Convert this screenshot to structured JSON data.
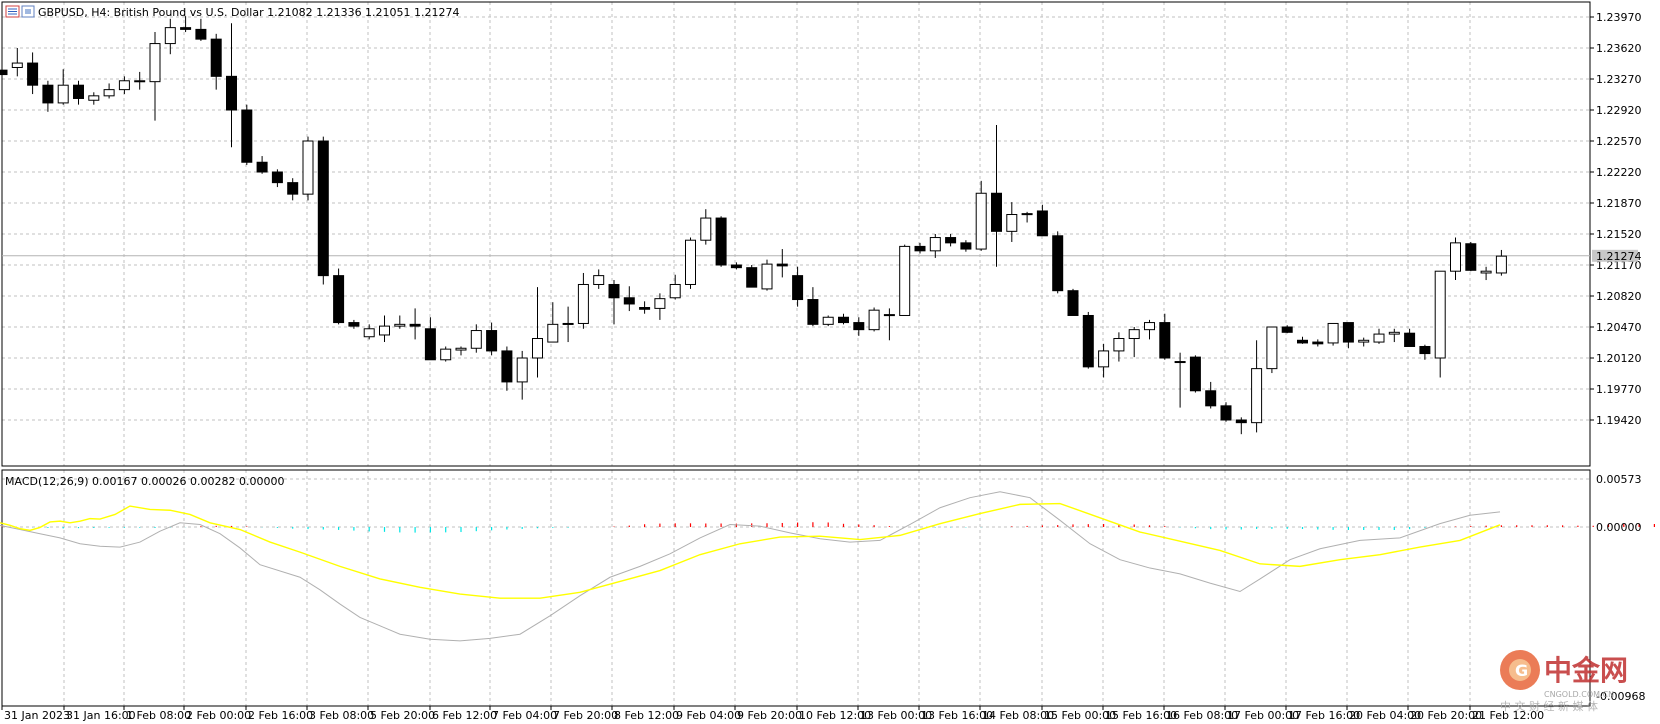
{
  "colors": {
    "grid": "#c0c0c0",
    "frame": "#000000",
    "bull_fill": "#ffffff",
    "bear_fill": "#000000",
    "macd_pos": "#ff0000",
    "macd_neg": "#00e5e5",
    "signal_line": "#ffff00",
    "macd_line": "#b0b0b0",
    "current_price_line": "#b4b4b4"
  },
  "header": {
    "symbol": "GBPUSD",
    "timeframe": "H4",
    "description": "British Pound vs U.S. Dollar",
    "ohlc": "1.21082 1.21336 1.21051 1.21274",
    "text": "GBPUSD, H4:  British Pound vs U.S. Dollar  1.21082 1.21336 1.21051 1.21274"
  },
  "chart_data": {
    "type": "candlestick",
    "symbol": "GBPUSD",
    "timeframe": "H4",
    "price_axis_labels": [
      "1.23970",
      "1.23620",
      "1.23270",
      "1.22920",
      "1.22570",
      "1.22220",
      "1.21870",
      "1.21520",
      "1.21170",
      "1.20820",
      "1.20470",
      "1.20120",
      "1.19770",
      "1.19420"
    ],
    "price_axis_values": [
      1.2397,
      1.2362,
      1.2327,
      1.2292,
      1.2257,
      1.2222,
      1.2187,
      1.2152,
      1.2117,
      1.2082,
      1.2047,
      1.2012,
      1.1977,
      1.1942
    ],
    "current_price": "1.21274",
    "time_axis_labels": [
      "31 Jan 2023",
      "31 Jan 16:00",
      "1 Feb 08:00",
      "2 Feb 00:00",
      "2 Feb 16:00",
      "3 Feb 08:00",
      "5 Feb 20:00",
      "6 Feb 12:00",
      "7 Feb 04:00",
      "7 Feb 20:00",
      "8 Feb 12:00",
      "9 Feb 04:00",
      "9 Feb 20:00",
      "10 Feb 12:00",
      "13 Feb 00:00",
      "13 Feb 16:00",
      "14 Feb 08:00",
      "15 Feb 00:00",
      "15 Feb 16:00",
      "16 Feb 08:00",
      "17 Feb 00:00",
      "17 Feb 16:00",
      "20 Feb 04:00",
      "20 Feb 20:00",
      "21 Feb 12:00"
    ],
    "candles": [
      [
        1.2337,
        1.2341,
        1.233,
        1.2332
      ],
      [
        1.234,
        1.2362,
        1.233,
        1.2345
      ],
      [
        1.2345,
        1.2357,
        1.231,
        1.232
      ],
      [
        1.232,
        1.2325,
        1.229,
        1.23
      ],
      [
        1.23,
        1.2338,
        1.2298,
        1.232
      ],
      [
        1.232,
        1.2325,
        1.2298,
        1.2305
      ],
      [
        1.2303,
        1.2312,
        1.2298,
        1.2308
      ],
      [
        1.2308,
        1.2322,
        1.2305,
        1.2315
      ],
      [
        1.2315,
        1.233,
        1.231,
        1.2325
      ],
      [
        1.2325,
        1.2335,
        1.2315,
        1.2324
      ],
      [
        1.2324,
        1.238,
        1.228,
        1.2367
      ],
      [
        1.2367,
        1.2395,
        1.2355,
        1.2385
      ],
      [
        1.2385,
        1.2398,
        1.238,
        1.2383
      ],
      [
        1.2383,
        1.2395,
        1.237,
        1.2372
      ],
      [
        1.2372,
        1.2378,
        1.2315,
        1.233
      ],
      [
        1.233,
        1.239,
        1.225,
        1.2292
      ],
      [
        1.2292,
        1.2298,
        1.223,
        1.2233
      ],
      [
        1.2233,
        1.224,
        1.222,
        1.2222
      ],
      [
        1.2222,
        1.2225,
        1.2205,
        1.221
      ],
      [
        1.221,
        1.2215,
        1.219,
        1.2197
      ],
      [
        1.2197,
        1.2262,
        1.219,
        1.2257
      ],
      [
        1.2257,
        1.2262,
        1.2095,
        1.2105
      ],
      [
        1.2105,
        1.2113,
        1.205,
        1.2052
      ],
      [
        1.2052,
        1.2055,
        1.2045,
        1.2048
      ],
      [
        1.2036,
        1.205,
        1.2033,
        1.2045
      ],
      [
        1.2038,
        1.206,
        1.203,
        1.2048
      ],
      [
        1.2048,
        1.206,
        1.2045,
        1.205
      ],
      [
        1.205,
        1.2068,
        1.2033,
        1.2048
      ],
      [
        1.2045,
        1.2058,
        1.2012,
        1.201
      ],
      [
        1.201,
        1.2025,
        1.2008,
        1.2022
      ],
      [
        1.2021,
        1.2025,
        1.2015,
        1.2023
      ],
      [
        1.2023,
        1.205,
        1.2018,
        1.2043
      ],
      [
        1.2043,
        1.2052,
        1.2015,
        1.202
      ],
      [
        1.202,
        1.2025,
        1.1975,
        1.1985
      ],
      [
        1.1985,
        1.202,
        1.1965,
        1.2012
      ],
      [
        1.2012,
        1.2092,
        1.199,
        1.2034
      ],
      [
        1.203,
        1.2075,
        1.203,
        1.205
      ],
      [
        1.205,
        1.207,
        1.203,
        1.2051
      ],
      [
        1.2051,
        1.2108,
        1.2045,
        1.2095
      ],
      [
        1.2095,
        1.2112,
        1.209,
        1.2105
      ],
      [
        1.2095,
        1.21,
        1.205,
        1.208
      ],
      [
        1.208,
        1.2093,
        1.2065,
        1.2073
      ],
      [
        1.2069,
        1.2076,
        1.2062,
        1.2067
      ],
      [
        1.2068,
        1.2085,
        1.2055,
        1.2079
      ],
      [
        1.208,
        1.2106,
        1.2078,
        1.2095
      ],
      [
        1.2095,
        1.2148,
        1.209,
        1.2145
      ],
      [
        1.2145,
        1.218,
        1.214,
        1.217
      ],
      [
        1.217,
        1.2172,
        1.2115,
        1.2117
      ],
      [
        1.2117,
        1.212,
        1.2112,
        1.2114
      ],
      [
        1.2114,
        1.2117,
        1.2092,
        1.2092
      ],
      [
        1.209,
        1.2123,
        1.2088,
        1.2118
      ],
      [
        1.2118,
        1.2135,
        1.2103,
        1.2116
      ],
      [
        1.2105,
        1.2115,
        1.207,
        1.2078
      ],
      [
        1.2078,
        1.2092,
        1.2048,
        1.205
      ],
      [
        1.205,
        1.206,
        1.2048,
        1.2058
      ],
      [
        1.2058,
        1.2062,
        1.205,
        1.2052
      ],
      [
        1.2052,
        1.2058,
        1.2037,
        1.2044
      ],
      [
        1.2044,
        1.2069,
        1.2042,
        1.2066
      ],
      [
        1.2061,
        1.2068,
        1.2032,
        1.2061
      ],
      [
        1.206,
        1.214,
        1.206,
        1.2138
      ],
      [
        1.2138,
        1.2142,
        1.213,
        1.2133
      ],
      [
        1.2133,
        1.2152,
        1.2125,
        1.2148
      ],
      [
        1.2148,
        1.2152,
        1.2138,
        1.2142
      ],
      [
        1.2142,
        1.2145,
        1.2132,
        1.2135
      ],
      [
        1.2135,
        1.2212,
        1.2133,
        1.2198
      ],
      [
        1.2198,
        1.2275,
        1.2115,
        1.2155
      ],
      [
        1.2155,
        1.2188,
        1.2143,
        1.2174
      ],
      [
        1.2174,
        1.2177,
        1.2165,
        1.2175
      ],
      [
        1.2178,
        1.2185,
        1.2152,
        1.215
      ],
      [
        1.215,
        1.2155,
        1.2085,
        1.2088
      ],
      [
        1.2088,
        1.209,
        1.206,
        1.206
      ],
      [
        1.206,
        1.2064,
        1.2,
        1.2002
      ],
      [
        1.2002,
        1.2028,
        1.199,
        1.202
      ],
      [
        1.202,
        1.2041,
        1.2008,
        1.2034
      ],
      [
        1.2034,
        1.2047,
        1.2013,
        1.2044
      ],
      [
        1.2044,
        1.2055,
        1.2033,
        1.2052
      ],
      [
        1.2052,
        1.2062,
        1.201,
        1.2012
      ],
      [
        1.2008,
        1.2018,
        1.1956,
        1.2008
      ],
      [
        1.2013,
        1.2015,
        1.1973,
        1.1975
      ],
      [
        1.1975,
        1.1985,
        1.1955,
        1.1958
      ],
      [
        1.1958,
        1.1962,
        1.194,
        1.1942
      ],
      [
        1.1942,
        1.1945,
        1.1926,
        1.1939
      ],
      [
        1.1939,
        1.2032,
        1.1928,
        1.2
      ],
      [
        1.2,
        1.2046,
        1.1995,
        1.2047
      ],
      [
        1.2047,
        1.2049,
        1.204,
        1.2041
      ],
      [
        1.2032,
        1.2036,
        1.2028,
        1.2029
      ],
      [
        1.203,
        1.2033,
        1.2025,
        1.2028
      ],
      [
        1.2029,
        1.2051,
        1.2026,
        1.2051
      ],
      [
        1.2052,
        1.2052,
        1.2023,
        1.203
      ],
      [
        1.203,
        1.2035,
        1.2025,
        1.2032
      ],
      [
        1.203,
        1.2045,
        1.2028,
        1.2039
      ],
      [
        1.2039,
        1.2045,
        1.203,
        1.2041
      ],
      [
        1.204,
        1.2045,
        1.2025,
        1.2025
      ],
      [
        1.2025,
        1.2027,
        1.201,
        1.2017
      ],
      [
        1.2012,
        1.211,
        1.199,
        1.211
      ],
      [
        1.211,
        1.2148,
        1.21,
        1.2142
      ],
      [
        1.2141,
        1.2143,
        1.211,
        1.2111
      ],
      [
        1.2108,
        1.2115,
        1.21,
        1.211
      ],
      [
        1.2108,
        1.2134,
        1.2105,
        1.2127
      ]
    ],
    "indicator": {
      "name": "MACD(12,26,9)",
      "values_text": "0.00167 0.00026 0.00282 0.00000",
      "axis_labels": [
        "0.00573",
        "0.00000",
        "-0.00968"
      ],
      "histogram": [
        5e-05,
        0.0,
        -3e-05,
        -0.00012,
        -0.00017,
        -0.00014,
        -0.00012,
        -0.0001,
        -0.0001,
        -8e-05,
        -0.00012,
        -8e-05,
        -2e-05,
        9e-05,
        0.00014,
        0.00013,
        7e-05,
        -3e-05,
        -0.00011,
        -0.0002,
        -0.00025,
        -0.0003,
        -0.00035,
        -0.00043,
        -0.00053,
        -0.00058,
        -0.00065,
        -0.00067,
        -0.00064,
        -0.00064,
        -0.0006,
        -0.0005,
        -0.0004,
        -0.0003,
        -0.00023,
        -0.00015,
        -0.0001,
        -8e-05,
        0.0,
        0.0,
        6e-05,
        0.00017,
        0.00033,
        0.00041,
        0.00044,
        0.00044,
        0.00042,
        0.00042,
        0.0004,
        0.00043,
        0.00045,
        0.00048,
        0.00053,
        0.00057,
        0.00054,
        0.00038,
        0.0003,
        0.00022,
        0.0001,
        0.0,
        -2e-05,
        -6e-05,
        -6e-05,
        -5e-05,
        -3e-05,
        0.0,
        8e-05,
        0.00013,
        0.00019,
        0.00023,
        0.00031,
        0.00034,
        0.00036,
        0.00034,
        0.0003,
        0.0002,
        0.0001,
        -5e-05,
        -0.00015,
        -0.00025,
        -0.0003,
        -0.0003,
        -0.00023,
        -0.00022,
        -0.00022,
        -0.00024,
        -0.0003,
        -0.00034,
        -0.00036,
        -0.00036,
        -0.00036,
        -0.00036,
        -0.00026,
        -0.0001,
        2e-05,
        6e-05,
        0.00011,
        0.00016,
        0.0002,
        0.00021,
        0.00021,
        0.00021,
        0.0002,
        0.00016,
        0.00015,
        0.00036,
        0.00035,
        0.00034,
        0.00036
      ],
      "signal_points": [
        [
          0,
          0.0005
        ],
        [
          10,
          0.0002
        ],
        [
          20,
          -0.0002
        ],
        [
          30,
          -0.0004
        ],
        [
          40,
          -5e-05
        ],
        [
          50,
          0.0006
        ],
        [
          60,
          0.0007
        ],
        [
          70,
          0.0005
        ],
        [
          80,
          0.0007
        ],
        [
          90,
          0.001
        ],
        [
          100,
          0.00095
        ],
        [
          115,
          0.0015
        ],
        [
          130,
          0.0025
        ],
        [
          150,
          0.0021
        ],
        [
          170,
          0.002
        ],
        [
          190,
          0.0015
        ],
        [
          210,
          0.0005
        ],
        [
          240,
          -0.0003
        ],
        [
          270,
          -0.0018
        ],
        [
          300,
          -0.003
        ],
        [
          340,
          -0.0047
        ],
        [
          380,
          -0.0062
        ],
        [
          420,
          -0.0072
        ],
        [
          460,
          -0.008
        ],
        [
          500,
          -0.0085
        ],
        [
          540,
          -0.0085
        ],
        [
          580,
          -0.0078
        ],
        [
          620,
          -0.0065
        ],
        [
          660,
          -0.0052
        ],
        [
          700,
          -0.0033
        ],
        [
          740,
          -0.002
        ],
        [
          780,
          -0.0012
        ],
        [
          820,
          -0.0011
        ],
        [
          860,
          -0.0015
        ],
        [
          900,
          -0.001
        ],
        [
          940,
          0.0004
        ],
        [
          980,
          0.0016
        ],
        [
          1020,
          0.0027
        ],
        [
          1060,
          0.0028
        ],
        [
          1100,
          0.0011
        ],
        [
          1140,
          -0.0006
        ],
        [
          1180,
          -0.0017
        ],
        [
          1220,
          -0.0028
        ],
        [
          1260,
          -0.0044
        ],
        [
          1300,
          -0.0047
        ],
        [
          1340,
          -0.0039
        ],
        [
          1380,
          -0.0033
        ],
        [
          1420,
          -0.0024
        ],
        [
          1460,
          -0.0016
        ],
        [
          1500,
          0.00026
        ]
      ],
      "macd_points": [
        [
          0,
          0.0002
        ],
        [
          20,
          -0.0003
        ],
        [
          40,
          -0.0008
        ],
        [
          60,
          -0.0013
        ],
        [
          80,
          -0.002
        ],
        [
          100,
          -0.0023
        ],
        [
          120,
          -0.0024
        ],
        [
          140,
          -0.0018
        ],
        [
          160,
          -0.0005
        ],
        [
          180,
          0.0005
        ],
        [
          200,
          0.0003
        ],
        [
          220,
          -0.0008
        ],
        [
          240,
          -0.0025
        ],
        [
          260,
          -0.0045
        ],
        [
          300,
          -0.006
        ],
        [
          320,
          -0.0075
        ],
        [
          340,
          -0.0092
        ],
        [
          360,
          -0.0108
        ],
        [
          380,
          -0.0118
        ],
        [
          400,
          -0.0128
        ],
        [
          430,
          -0.0134
        ],
        [
          460,
          -0.0136
        ],
        [
          490,
          -0.0133
        ],
        [
          520,
          -0.0128
        ],
        [
          550,
          -0.0106
        ],
        [
          580,
          -0.0082
        ],
        [
          610,
          -0.006
        ],
        [
          640,
          -0.0047
        ],
        [
          670,
          -0.0032
        ],
        [
          700,
          -0.0013
        ],
        [
          730,
          0.0003
        ],
        [
          760,
          0.0001
        ],
        [
          790,
          -0.0007
        ],
        [
          820,
          -0.0014
        ],
        [
          850,
          -0.0018
        ],
        [
          880,
          -0.0016
        ],
        [
          910,
          0.0003
        ],
        [
          940,
          0.0023
        ],
        [
          970,
          0.0035
        ],
        [
          1000,
          0.0042
        ],
        [
          1030,
          0.0035
        ],
        [
          1060,
          0.0008
        ],
        [
          1090,
          -0.002
        ],
        [
          1120,
          -0.0039
        ],
        [
          1150,
          -0.0049
        ],
        [
          1180,
          -0.0056
        ],
        [
          1210,
          -0.0067
        ],
        [
          1240,
          -0.0077
        ],
        [
          1260,
          -0.0062
        ],
        [
          1290,
          -0.0039
        ],
        [
          1320,
          -0.0026
        ],
        [
          1360,
          -0.0016
        ],
        [
          1400,
          -0.0013
        ],
        [
          1440,
          0.0004
        ],
        [
          1470,
          0.0014
        ],
        [
          1500,
          0.0018
        ]
      ]
    }
  },
  "watermark": {
    "brand": "中金网",
    "site": "CNGOLD.COM.CN",
    "tagline": "中 文 财 经 新 媒 体"
  }
}
